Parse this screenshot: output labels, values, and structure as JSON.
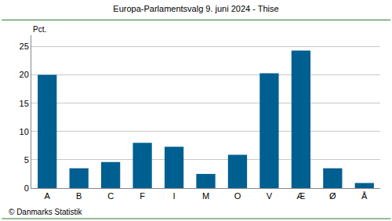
{
  "chart_data": {
    "type": "bar",
    "title": "Europa-Parlamentsvalg 9. juni 2024 - Thise",
    "ylabel": "Pct.",
    "source": "© Danmarks Statistik",
    "categories": [
      "A",
      "B",
      "C",
      "F",
      "I",
      "M",
      "O",
      "V",
      "Æ",
      "Ø",
      "Å"
    ],
    "values": [
      20.0,
      3.5,
      4.6,
      8.0,
      7.3,
      2.5,
      5.9,
      20.3,
      24.3,
      3.5,
      0.9
    ],
    "color": "#005f91",
    "ylim": [
      0,
      27
    ],
    "yticks": [
      0,
      5,
      10,
      15,
      20,
      25
    ],
    "grid": true
  }
}
